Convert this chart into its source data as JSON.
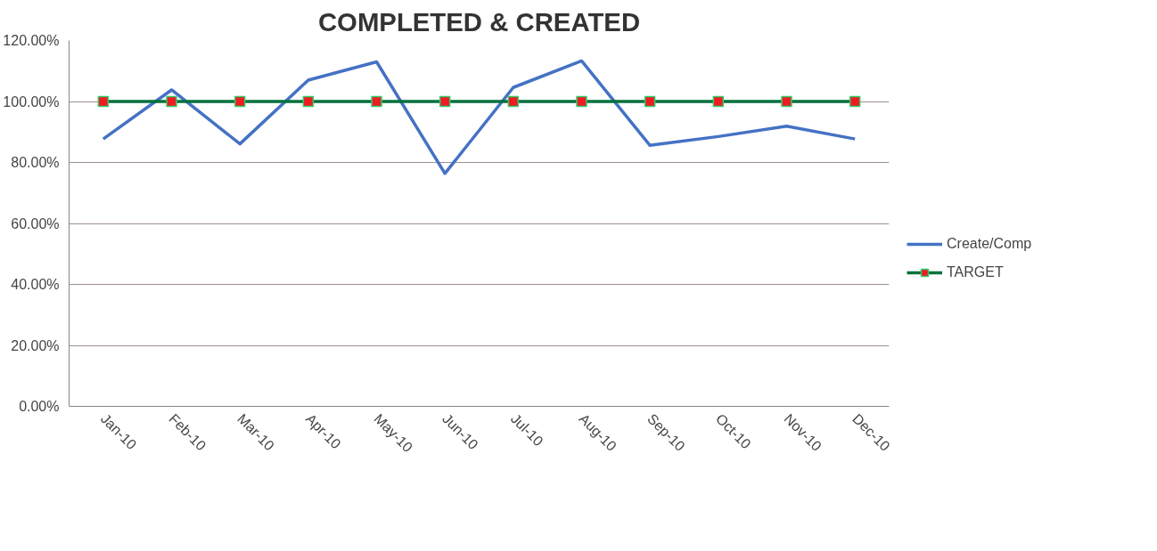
{
  "chart_data": {
    "type": "line",
    "title": "COMPLETED & CREATED",
    "categories": [
      "Jan-10",
      "Feb-10",
      "Mar-10",
      "Apr-10",
      "May-10",
      "Jun-10",
      "Jul-10",
      "Aug-10",
      "Sep-10",
      "Oct-10",
      "Nov-10",
      "Dec-10"
    ],
    "series": [
      {
        "name": "Create/Comp",
        "color": "#4472c4",
        "marker": "none",
        "values": [
          87.7,
          103.8,
          86.1,
          107.0,
          113.0,
          76.4,
          104.6,
          113.3,
          85.6,
          88.5,
          91.9,
          87.7
        ]
      },
      {
        "name": "TARGET",
        "color": "#00703c",
        "marker": "square",
        "values": [
          100,
          100,
          100,
          100,
          100,
          100,
          100,
          100,
          100,
          100,
          100,
          100
        ]
      }
    ],
    "ylim": [
      0,
      120
    ],
    "yticks": [
      {
        "value": 0,
        "label": "0.00%"
      },
      {
        "value": 20,
        "label": "20.00%"
      },
      {
        "value": 40,
        "label": "40.00%"
      },
      {
        "value": 60,
        "label": "60.00%"
      },
      {
        "value": 80,
        "label": "80.00%"
      },
      {
        "value": 100,
        "label": "100.00%"
      },
      {
        "value": 120,
        "label": "120.00%"
      }
    ],
    "grid": "y",
    "legend": "right"
  }
}
